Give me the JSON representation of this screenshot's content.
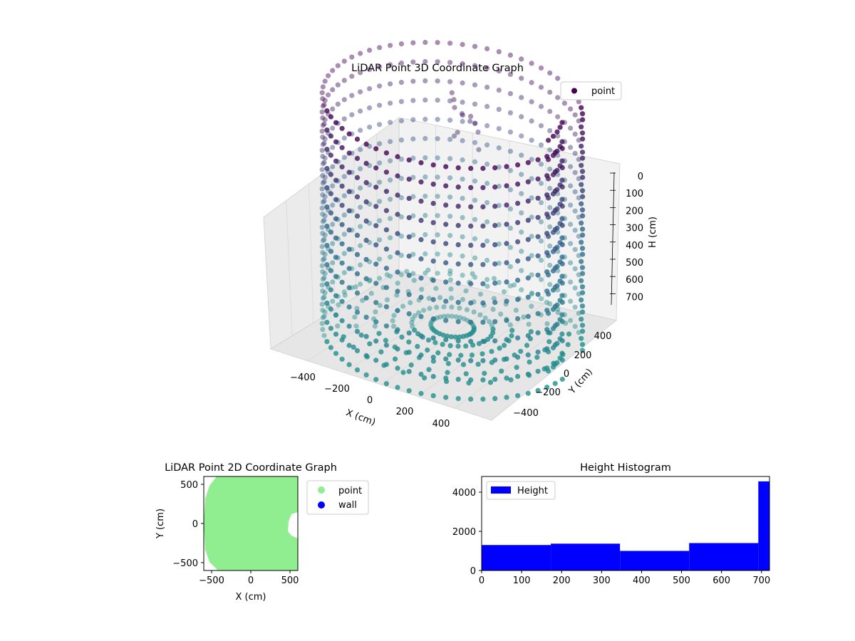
{
  "chart_data": [
    {
      "type": "scatter3d",
      "title": "LiDAR Point 3D Coordinate Graph",
      "xlabel": "X (cm)",
      "ylabel": "Y (cm)",
      "zlabel": "H (cm)",
      "xticks": [
        "−400",
        "−200",
        "0",
        "200",
        "400"
      ],
      "yticks": [
        "−400",
        "−200",
        "0",
        "200",
        "400"
      ],
      "zticks": [
        "0",
        "100",
        "200",
        "300",
        "400",
        "500",
        "600",
        "700"
      ],
      "xlim": [
        -560,
        560
      ],
      "ylim": [
        -560,
        560
      ],
      "zlim": [
        0,
        720
      ],
      "z_inverted": true,
      "legend": {
        "entries": [
          {
            "label": "point",
            "color": "#440154"
          }
        ],
        "position": "top-right"
      },
      "colormap": [
        "#440154",
        "#31688e",
        "#21918c"
      ],
      "grid": true,
      "description_series": {
        "wall_radius": 480,
        "heights": [
          0,
          60,
          120,
          180,
          240,
          300,
          360,
          420,
          480,
          540,
          600,
          660,
          720
        ]
      }
    },
    {
      "type": "scatter",
      "title": "LiDAR Point 2D Coordinate Graph",
      "xlabel": "X (cm)",
      "ylabel": "Y (cm)",
      "xticks": [
        -500,
        0,
        500
      ],
      "yticks": [
        -500,
        0,
        500
      ],
      "xlim": [
        -600,
        600
      ],
      "ylim": [
        -600,
        600
      ],
      "legend": {
        "entries": [
          {
            "label": "point",
            "color": "#90ee90"
          },
          {
            "label": "wall",
            "color": "#0000ff"
          }
        ],
        "position": "outside-right"
      }
    },
    {
      "type": "histogram",
      "title": "Height Histogram",
      "xticks": [
        0,
        100,
        200,
        300,
        400,
        500,
        600,
        700
      ],
      "yticks": [
        0,
        2000,
        4000
      ],
      "xlim": [
        0,
        720
      ],
      "ylim": [
        0,
        4800
      ],
      "color": "#0000ff",
      "legend": {
        "entries": [
          {
            "label": "Height",
            "color": "#0000ff"
          }
        ],
        "position": "top-left"
      },
      "bins": [
        {
          "start": 0,
          "end": 173,
          "count": 1300
        },
        {
          "start": 173,
          "end": 346,
          "count": 1370
        },
        {
          "start": 346,
          "end": 519,
          "count": 1000
        },
        {
          "start": 519,
          "end": 692,
          "count": 1400
        },
        {
          "start": 692,
          "end": 720,
          "count": 4550
        }
      ]
    }
  ]
}
